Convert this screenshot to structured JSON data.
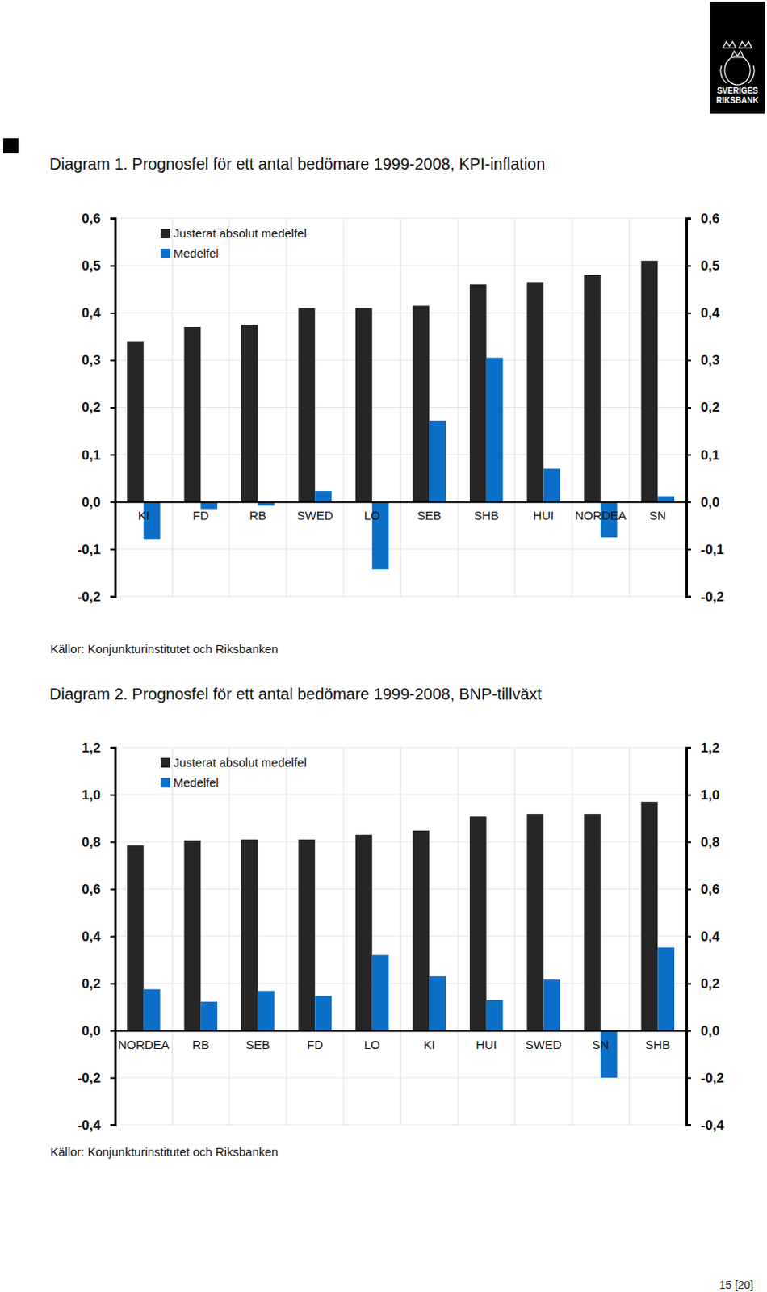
{
  "logo": [
    "SVERIGES",
    "RIKSBANK"
  ],
  "page_number": "15 [20]",
  "chart_data": [
    {
      "type": "bar",
      "title": "Diagram 1. Prognosfel för ett antal bedömare 1999-2008, KPI-inflation",
      "source": "Källor: Konjunkturinstitutet och Riksbanken",
      "categories": [
        "KI",
        "FD",
        "RB",
        "SWED",
        "LO",
        "SEB",
        "SHB",
        "HUI",
        "NORDEA",
        "SN"
      ],
      "series": [
        {
          "name": "Justerat absolut medelfel",
          "color": "#262626",
          "values": [
            0.34,
            0.37,
            0.375,
            0.41,
            0.41,
            0.415,
            0.46,
            0.465,
            0.48,
            0.51
          ]
        },
        {
          "name": "Medelfel",
          "color": "#0b6fc8",
          "values": [
            -0.08,
            -0.015,
            -0.008,
            0.023,
            -0.143,
            0.172,
            0.305,
            0.07,
            -0.075,
            0.012
          ]
        }
      ],
      "ylim": [
        -0.2,
        0.6
      ],
      "yticks": [
        {
          "value": -0.2,
          "label": "-0,2"
        },
        {
          "value": -0.1,
          "label": "-0,1"
        },
        {
          "value": 0,
          "label": "0,0"
        },
        {
          "value": 0.1,
          "label": "0,1"
        },
        {
          "value": 0.2,
          "label": "0,2"
        },
        {
          "value": 0.3,
          "label": "0,3"
        },
        {
          "value": 0.4,
          "label": "0,4"
        },
        {
          "value": 0.5,
          "label": "0,5"
        },
        {
          "value": 0.6,
          "label": "0,6"
        }
      ],
      "y2lim": [
        -0.2,
        0.6
      ],
      "y2ticks": [
        {
          "value": -0.2,
          "label": "-0,2"
        },
        {
          "value": -0.1,
          "label": "-0,1"
        },
        {
          "value": 0,
          "label": "0,0"
        },
        {
          "value": 0.1,
          "label": "0,1"
        },
        {
          "value": 0.2,
          "label": "0,2"
        },
        {
          "value": 0.3,
          "label": "0,3"
        },
        {
          "value": 0.4,
          "label": "0,4"
        },
        {
          "value": 0.5,
          "label": "0,5"
        },
        {
          "value": 0.6,
          "label": "0,6"
        }
      ],
      "grid": true,
      "legend": "top-left"
    },
    {
      "type": "bar",
      "title": "Diagram 2. Prognosfel för ett antal bedömare 1999-2008, BNP-tillväxt",
      "source": "Källor: Konjunkturinstitutet och Riksbanken",
      "categories": [
        "NORDEA",
        "RB",
        "SEB",
        "FD",
        "LO",
        "KI",
        "HUI",
        "SWED",
        "SN",
        "SHB"
      ],
      "series": [
        {
          "name": "Justerat absolut medelfel",
          "color": "#262626",
          "values": [
            0.785,
            0.806,
            0.81,
            0.81,
            0.83,
            0.848,
            0.907,
            0.918,
            0.918,
            0.97
          ]
        },
        {
          "name": "Medelfel",
          "color": "#0b6fc8",
          "values": [
            0.175,
            0.122,
            0.168,
            0.147,
            0.32,
            0.23,
            0.129,
            0.216,
            -0.2,
            0.352
          ]
        }
      ],
      "ylim": [
        -0.4,
        1.2
      ],
      "yticks": [
        {
          "value": -0.4,
          "label": "-0,4"
        },
        {
          "value": -0.2,
          "label": "-0,2"
        },
        {
          "value": 0,
          "label": "0,0"
        },
        {
          "value": 0.2,
          "label": "0,2"
        },
        {
          "value": 0.4,
          "label": "0,4"
        },
        {
          "value": 0.6,
          "label": "0,6"
        },
        {
          "value": 0.8,
          "label": "0,8"
        },
        {
          "value": 1.0,
          "label": "1,0"
        },
        {
          "value": 1.2,
          "label": "1,2"
        }
      ],
      "y2lim": [
        -0.4,
        1.2
      ],
      "y2ticks": [
        {
          "value": -0.4,
          "label": "-0,4"
        },
        {
          "value": -0.2,
          "label": "-0,2"
        },
        {
          "value": 0,
          "label": "0,0"
        },
        {
          "value": 0.2,
          "label": "0,2"
        },
        {
          "value": 0.4,
          "label": "0,4"
        },
        {
          "value": 0.6,
          "label": "0,6"
        },
        {
          "value": 0.8,
          "label": "0,8"
        },
        {
          "value": 1.0,
          "label": "1,0"
        },
        {
          "value": 1.2,
          "label": "1,2"
        }
      ],
      "grid": true,
      "legend": "top-left"
    }
  ]
}
